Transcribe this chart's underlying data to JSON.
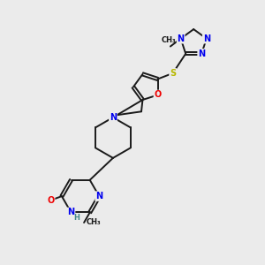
{
  "background_color": "#ebebeb",
  "bond_color": "#1a1a1a",
  "atom_colors": {
    "N": "#0000ee",
    "O": "#ee0000",
    "S": "#b8b800",
    "H": "#888888",
    "C": "#1a1a1a"
  },
  "figsize": [
    3.0,
    3.0
  ],
  "dpi": 100,
  "lw": 1.4,
  "fs": 7.0,
  "fs_small": 6.0
}
